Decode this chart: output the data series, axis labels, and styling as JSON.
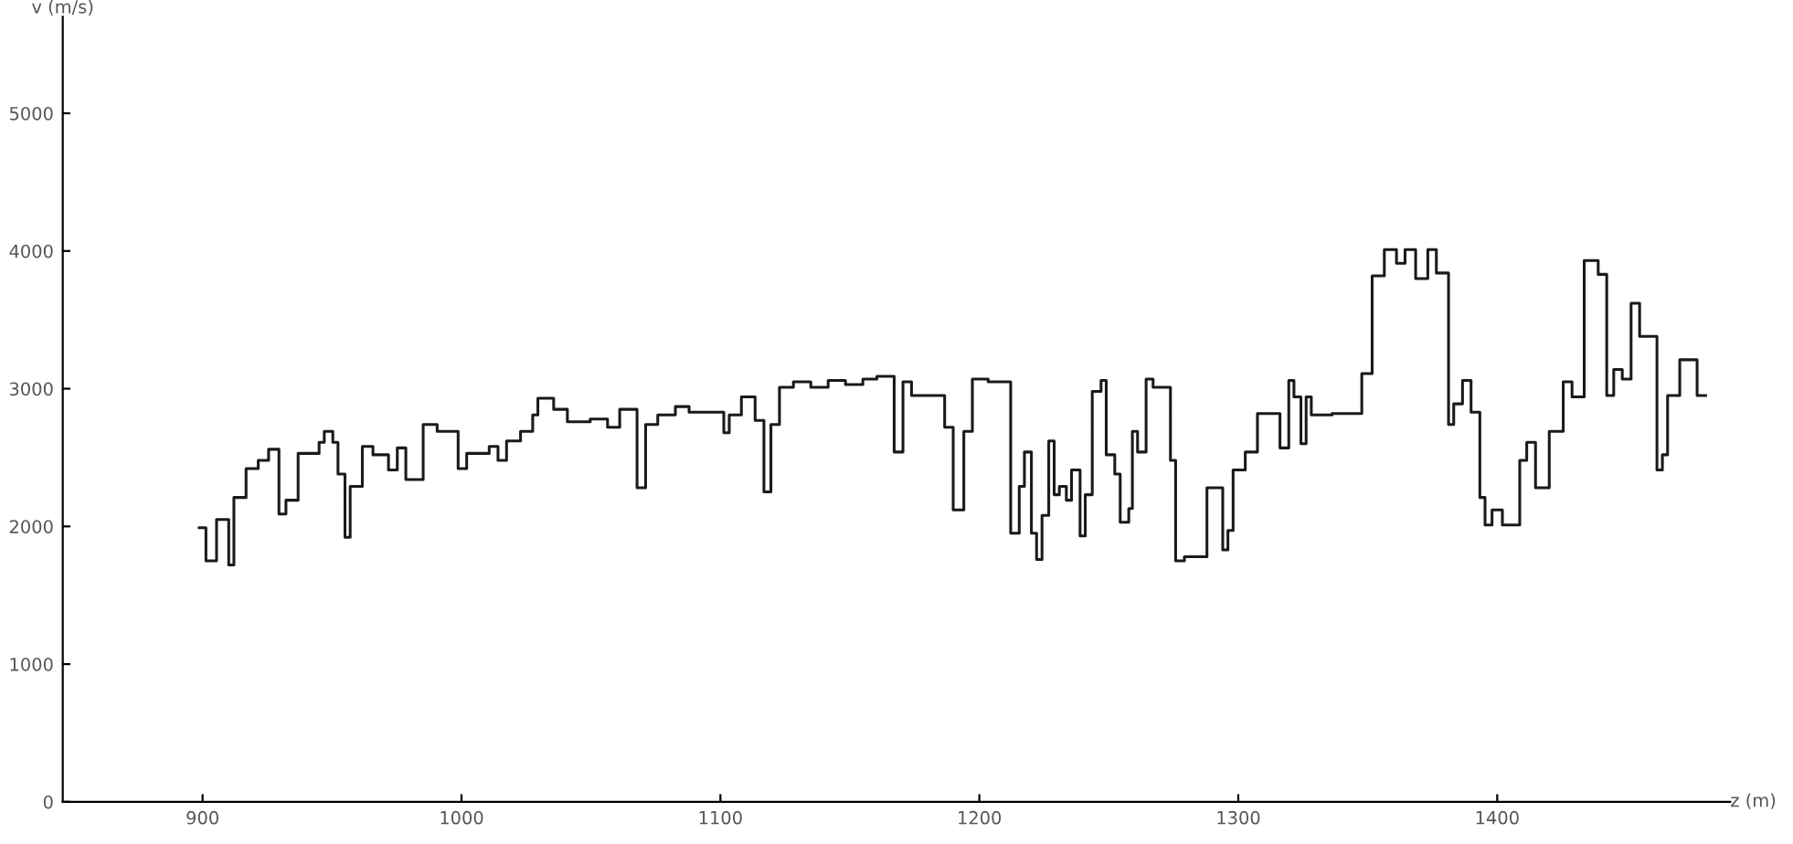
{
  "chart_data": {
    "type": "step",
    "xlabel": "z (m)",
    "ylabel": "v (m/s)",
    "xlim": [
      846,
      1490
    ],
    "ylim": [
      0,
      5700
    ],
    "xticks": [
      900,
      1000,
      1100,
      1200,
      1300,
      1400
    ],
    "yticks": [
      0,
      1000,
      2000,
      3000,
      4000,
      5000
    ],
    "grid": false,
    "legend": false,
    "series": [
      {
        "color": "#1a1a1a",
        "x": [
          898.7,
          901.3,
          905.4,
          910.1,
          912.1,
          916.8,
          921.5,
          925.5,
          929.5,
          932.2,
          936.9,
          945.0,
          947.0,
          950.3,
          952.3,
          955.0,
          957.0,
          961.7,
          965.8,
          971.8,
          975.2,
          978.5,
          985.2,
          990.6,
          998.7,
          1002.0,
          1010.7,
          1014.1,
          1017.4,
          1022.8,
          1027.5,
          1029.5,
          1035.6,
          1040.9,
          1049.7,
          1056.4,
          1061.1,
          1067.8,
          1071.1,
          1075.8,
          1082.6,
          1087.9,
          1101.3,
          1103.4,
          1108.1,
          1113.4,
          1116.8,
          1119.5,
          1122.8,
          1128.2,
          1134.9,
          1141.6,
          1148.3,
          1155.0,
          1160.4,
          1167.1,
          1170.5,
          1173.8,
          1186.6,
          1189.9,
          1194.0,
          1197.3,
          1203.4,
          1212.1,
          1215.4,
          1217.4,
          1220.1,
          1222.1,
          1224.2,
          1226.8,
          1228.9,
          1230.9,
          1233.6,
          1235.6,
          1238.9,
          1240.9,
          1243.6,
          1247.0,
          1249.0,
          1252.3,
          1254.4,
          1257.7,
          1259.1,
          1261.1,
          1264.4,
          1267.1,
          1273.8,
          1275.8,
          1279.2,
          1287.9,
          1294.0,
          1296.0,
          1298.0,
          1302.7,
          1307.4,
          1316.1,
          1319.5,
          1321.5,
          1324.2,
          1326.2,
          1328.2,
          1336.2,
          1347.7,
          1351.7,
          1356.4,
          1361.1,
          1364.4,
          1368.5,
          1373.2,
          1376.5,
          1381.2,
          1383.2,
          1386.6,
          1389.9,
          1393.3,
          1395.3,
          1398.0,
          1402.0,
          1408.7,
          1411.4,
          1414.8,
          1420.1,
          1425.5,
          1428.9,
          1433.6,
          1439.0,
          1442.3,
          1445.0,
          1448.3,
          1451.7,
          1455.0,
          1461.7,
          1463.8,
          1465.8,
          1470.5,
          1477.2,
          1480.5
        ],
        "values": [
          1990,
          1750,
          2050,
          1720,
          2210,
          2420,
          2480,
          2560,
          2090,
          2190,
          2530,
          2610,
          2690,
          2610,
          2380,
          1920,
          2290,
          2580,
          2520,
          2410,
          2570,
          2340,
          2740,
          2690,
          2420,
          2530,
          2580,
          2480,
          2620,
          2690,
          2810,
          2930,
          2850,
          2760,
          2780,
          2720,
          2850,
          2280,
          2740,
          2810,
          2870,
          2830,
          2680,
          2810,
          2940,
          2770,
          2250,
          2740,
          3010,
          3050,
          3010,
          3060,
          3030,
          3070,
          3090,
          2540,
          3050,
          2950,
          2720,
          2120,
          2690,
          3070,
          3050,
          1950,
          2290,
          2540,
          1950,
          1760,
          2080,
          2620,
          2230,
          2290,
          2190,
          2410,
          1930,
          2230,
          2980,
          3060,
          2520,
          2380,
          2030,
          2130,
          2690,
          2540,
          3070,
          3010,
          2480,
          1750,
          1780,
          2280,
          1830,
          1970,
          2410,
          2540,
          2820,
          2570,
          3060,
          2940,
          2600,
          2940,
          2810,
          2820,
          3110,
          3820,
          4010,
          3910,
          4010,
          3800,
          4010,
          3840,
          2740,
          2890,
          3060,
          2830,
          2210,
          2010,
          2120,
          2010,
          2480,
          2610,
          2280,
          2690,
          3050,
          2940,
          3930,
          3830,
          2950,
          3140,
          3070,
          3620,
          3380,
          2410,
          2520,
          2950,
          3210,
          2950,
          2950
        ]
      }
    ]
  }
}
